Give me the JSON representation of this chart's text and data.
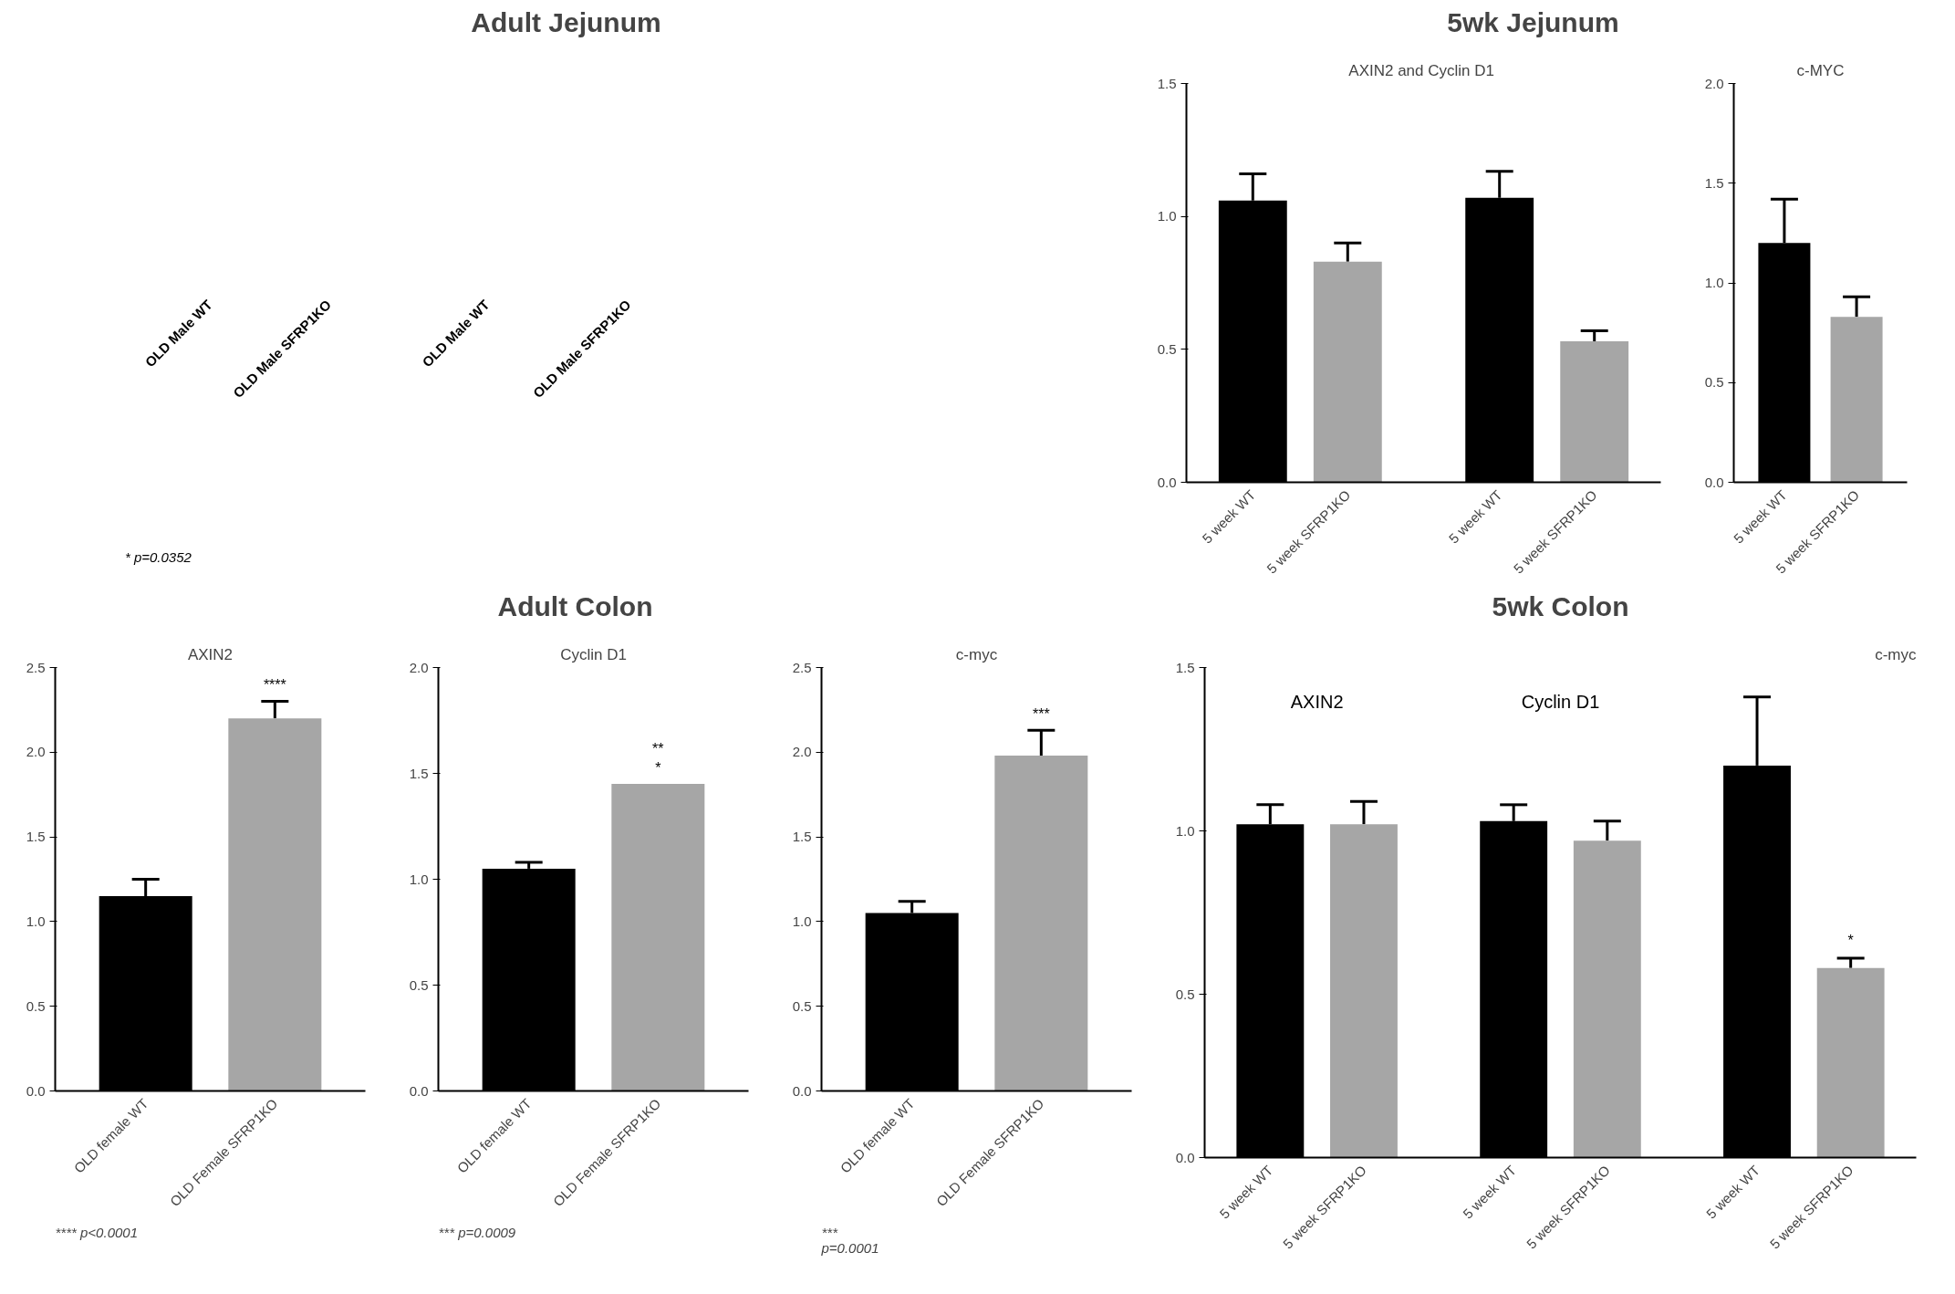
{
  "chart_data": [
    {
      "type": "other",
      "title": "Adult Jejunum",
      "annotations": [
        "OLD Male WT",
        "OLD Male SFRP1KO",
        "OLD Male WT",
        "OLD Male SFRP1KO",
        "* p=0.0352"
      ]
    },
    {
      "type": "other",
      "title": "5wk Jejunum"
    },
    {
      "type": "bar",
      "title": "AXIN2 and  Cyclin D1",
      "categories": [
        "5 week WT",
        "5 week SFRP1KO",
        "5 week WT",
        "5 week SFRP1KO"
      ],
      "values": [
        1.06,
        0.83,
        1.07,
        0.53
      ],
      "errors": [
        0.1,
        0.07,
        0.1,
        0.04
      ],
      "colors": [
        "#000000",
        "#a6a6a6",
        "#000000",
        "#a6a6a6"
      ],
      "ylim": [
        0,
        1.5
      ],
      "yticks": [
        {
          "value": 0,
          "label": "0.0"
        },
        {
          "value": 0.5,
          "label": "0.5"
        },
        {
          "value": 1,
          "label": "1.0"
        },
        {
          "value": 1.5,
          "label": "1.5"
        }
      ]
    },
    {
      "type": "bar",
      "title": "c-MYC",
      "categories": [
        "5 week WT",
        "5 week SFRP1KO"
      ],
      "values": [
        1.2,
        0.83
      ],
      "errors": [
        0.22,
        0.1
      ],
      "colors": [
        "#000000",
        "#a6a6a6"
      ],
      "ylim": [
        0,
        2
      ],
      "yticks": [
        {
          "value": 0,
          "label": "0.0"
        },
        {
          "value": 0.5,
          "label": "0.5"
        },
        {
          "value": 1,
          "label": "1.0"
        },
        {
          "value": 1.5,
          "label": "1.5"
        },
        {
          "value": 2,
          "label": "2.0"
        }
      ]
    },
    {
      "type": "other",
      "title": "Adult Colon"
    },
    {
      "type": "bar",
      "title": "AXIN2",
      "categories": [
        "OLD female WT",
        "OLD Female SFRP1KO"
      ],
      "values": [
        1.15,
        2.2
      ],
      "errors": [
        0.1,
        0.1
      ],
      "colors": [
        "#000000",
        "#a6a6a6"
      ],
      "ylim": [
        0,
        2.5
      ],
      "yticks": [
        {
          "value": 0,
          "label": "0.0"
        },
        {
          "value": 0.5,
          "label": "0.5"
        },
        {
          "value": 1,
          "label": "1.0"
        },
        {
          "value": 1.5,
          "label": "1.5"
        },
        {
          "value": 2,
          "label": "2.0"
        },
        {
          "value": 2.5,
          "label": "2.5"
        }
      ],
      "annotations": [
        "****",
        "**** p<0.0001"
      ]
    },
    {
      "type": "bar",
      "title": "Cyclin D1",
      "categories": [
        "OLD female WT",
        "OLD Female SFRP1KO"
      ],
      "values": [
        1.05,
        1.45
      ],
      "errors": [
        0.03,
        null
      ],
      "colors": [
        "#000000",
        "#a6a6a6"
      ],
      "ylim": [
        0,
        2
      ],
      "yticks": [
        {
          "value": 0,
          "label": "0.0"
        },
        {
          "value": 0.5,
          "label": "0.5"
        },
        {
          "value": 1,
          "label": "1.0"
        },
        {
          "value": 1.5,
          "label": "1.5"
        },
        {
          "value": 2,
          "label": "2.0"
        }
      ],
      "annotations": [
        "**\n*",
        "*** p=0.0009"
      ]
    },
    {
      "type": "bar",
      "title": "c-myc",
      "categories": [
        "OLD female WT",
        "OLD Female SFRP1KO"
      ],
      "values": [
        1.05,
        1.98
      ],
      "errors": [
        0.07,
        0.15
      ],
      "colors": [
        "#000000",
        "#a6a6a6"
      ],
      "ylim": [
        0,
        2.5
      ],
      "yticks": [
        {
          "value": 0,
          "label": "0.0"
        },
        {
          "value": 0.5,
          "label": "0.5"
        },
        {
          "value": 1,
          "label": "1.0"
        },
        {
          "value": 1.5,
          "label": "1.5"
        },
        {
          "value": 2,
          "label": "2.0"
        },
        {
          "value": 2.5,
          "label": "2.5"
        }
      ],
      "annotations": [
        "***",
        "***\np=0.0001"
      ]
    },
    {
      "type": "other",
      "title": "5wk Colon"
    },
    {
      "type": "bar",
      "title": "c-myc",
      "categories": [
        "5 week WT",
        "5 week SFRP1KO",
        "5 week WT",
        "5 week SFRP1KO",
        "5 week WT",
        "5 week SFRP1KO"
      ],
      "values": [
        1.02,
        1.02,
        1.03,
        0.97,
        1.2,
        0.58
      ],
      "errors": [
        0.06,
        0.07,
        0.05,
        0.06,
        0.21,
        0.03
      ],
      "colors": [
        "#000000",
        "#a6a6a6",
        "#000000",
        "#a6a6a6",
        "#000000",
        "#a6a6a6"
      ],
      "ylim": [
        0,
        1.5
      ],
      "yticks": [
        {
          "value": 0,
          "label": "0.0"
        },
        {
          "value": 0.5,
          "label": "0.5"
        },
        {
          "value": 1,
          "label": "1.0"
        },
        {
          "value": 1.5,
          "label": "1.5"
        }
      ],
      "annotations": [
        "AXIN2",
        "Cyclin D1",
        "*"
      ]
    }
  ]
}
